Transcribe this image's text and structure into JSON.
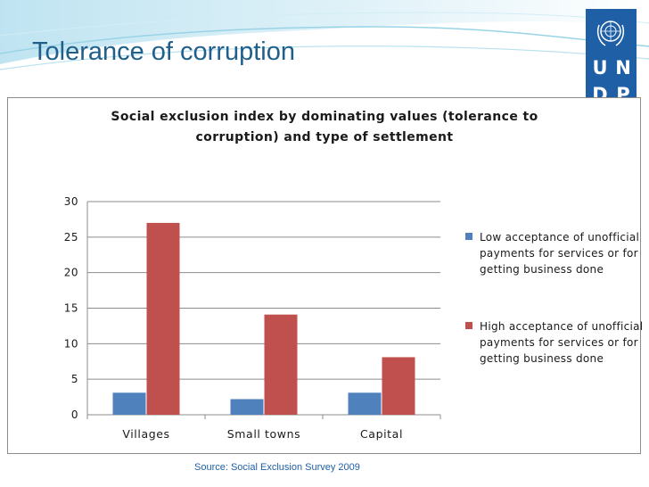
{
  "slide": {
    "title": "Tolerance of corruption",
    "source": "Source: Social Exclusion Survey 2009"
  },
  "logo": {
    "letters": [
      "U",
      "N",
      "D",
      "P"
    ],
    "emblem_icon": "un-emblem-icon",
    "color": "#1f5fa6"
  },
  "colors": {
    "title": "#1f5f8b",
    "wave": "#8ecae0",
    "series_low": "#4f81bd",
    "series_high": "#c0504d"
  },
  "chart_data": {
    "type": "bar",
    "title": "Social exclusion index by dominating values (tolerance to corruption) and type of settlement",
    "categories": [
      "Villages",
      "Small towns",
      "Capital"
    ],
    "series": [
      {
        "name": "Low acceptance of unofficial payments for services or for getting business done",
        "values": [
          3.1,
          2.2,
          3.1
        ],
        "color": "#4f81bd"
      },
      {
        "name": "High acceptance of unofficial payments for services or for getting business done",
        "values": [
          27,
          14.1,
          8.1
        ],
        "color": "#c0504d"
      }
    ],
    "ylim": [
      0,
      30
    ],
    "yticks": [
      0,
      5,
      10,
      15,
      20,
      25,
      30
    ],
    "xlabel": "",
    "ylabel": "",
    "grid": true,
    "legend_position": "right"
  }
}
